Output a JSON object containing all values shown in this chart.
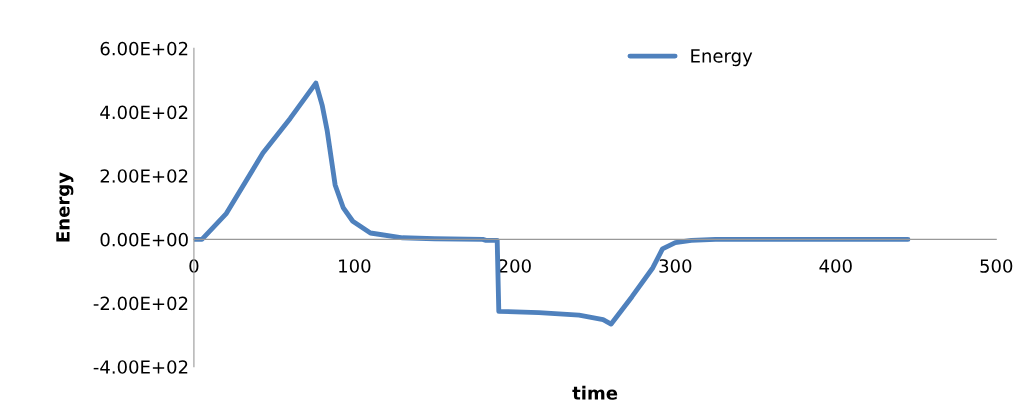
{
  "chart_data": {
    "type": "line",
    "xlabel": "time",
    "ylabel": "Energy",
    "series": [
      {
        "name": "Energy",
        "color": "#4f81bd",
        "x": [
          0,
          5,
          20,
          43,
          60,
          76,
          80,
          83,
          88,
          93,
          99,
          110,
          130,
          150,
          180,
          182,
          189,
          190,
          215,
          240,
          255,
          260,
          273,
          286,
          292,
          300,
          310,
          325,
          445
        ],
        "values": [
          0,
          0,
          80,
          271,
          380,
          491,
          420,
          343,
          171,
          100,
          57,
          20,
          5,
          2,
          0,
          -3,
          -3,
          -226,
          -230,
          -238,
          -252,
          -266,
          -180,
          -89,
          -30,
          -10,
          -3,
          0,
          0
        ]
      }
    ],
    "xlim": [
      0,
      500
    ],
    "xticks": [
      0,
      100,
      200,
      300,
      400,
      500
    ],
    "ylim": [
      -400,
      600
    ],
    "yticks": [
      {
        "value": -400,
        "label": "-4.00E+02"
      },
      {
        "value": -200,
        "label": "-2.00E+02"
      },
      {
        "value": 0,
        "label": "0.00E+00"
      },
      {
        "value": 200,
        "label": "2.00E+02"
      },
      {
        "value": 400,
        "label": "4.00E+02"
      },
      {
        "value": 600,
        "label": "6.00E+02"
      }
    ],
    "legend": "top",
    "grid": false,
    "marker": "none",
    "line_style": "solid"
  }
}
